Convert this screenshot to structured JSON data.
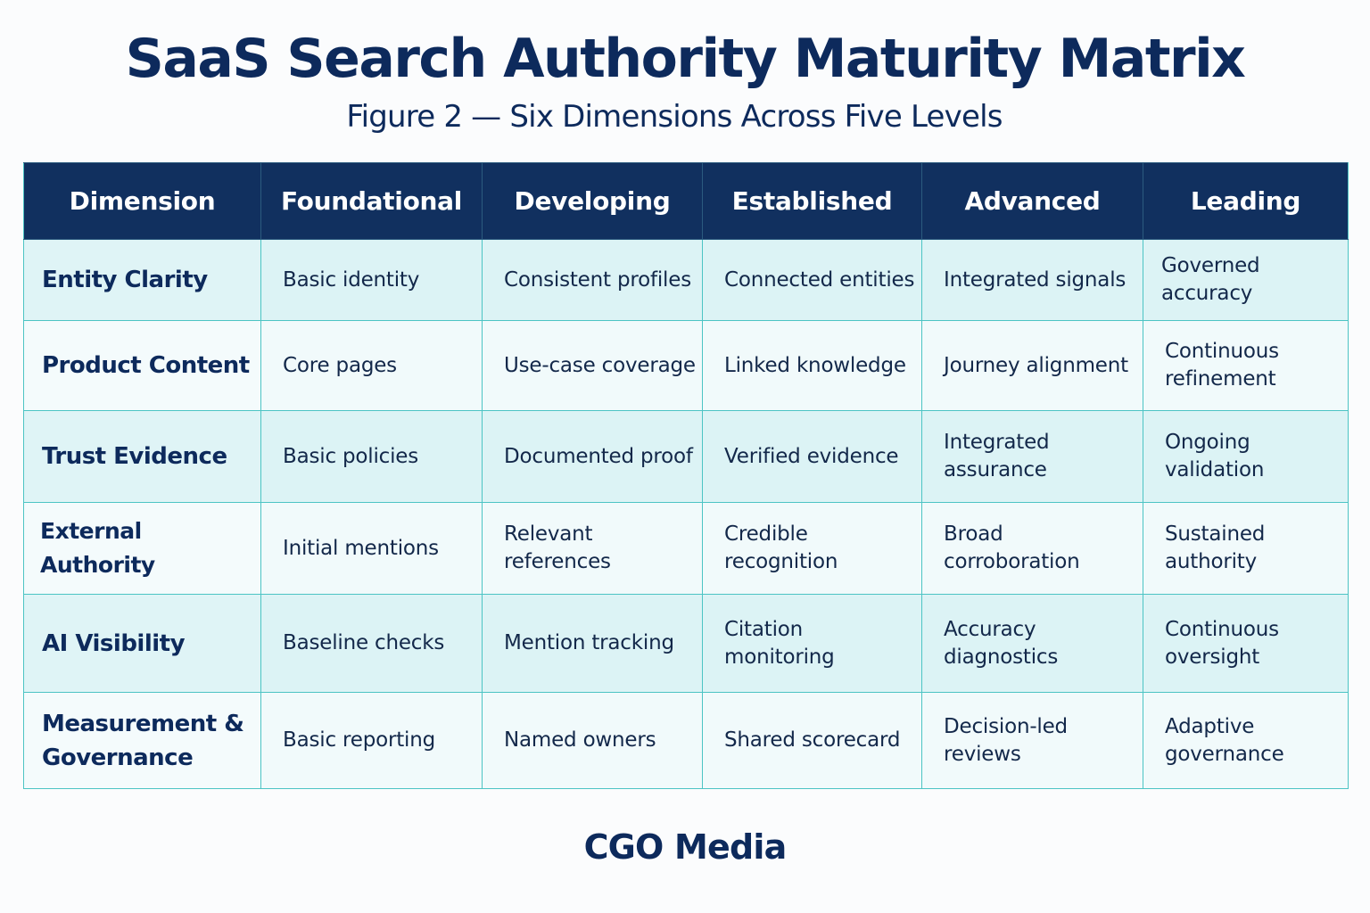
{
  "header": {
    "title": "SaaS Search Authority Maturity Matrix",
    "subtitle": "Figure 2 — Six Dimensions Across Five Levels"
  },
  "matrix": {
    "columns": [
      "Dimension",
      "Foundational",
      "Developing",
      "Established",
      "Advanced",
      "Leading"
    ],
    "rows": [
      {
        "dimension": "Entity Clarity",
        "cells": [
          "Basic identity",
          "Consistent profiles",
          "Connected entities",
          "Integrated signals",
          "Governed accuracy"
        ]
      },
      {
        "dimension": "Product Content",
        "cells": [
          "Core pages",
          "Use-case coverage",
          "Linked knowledge",
          "Journey alignment",
          "Continuous refinement"
        ]
      },
      {
        "dimension": "Trust Evidence",
        "cells": [
          "Basic policies",
          "Documented proof",
          "Verified evidence",
          "Integrated assurance",
          "Ongoing validation"
        ]
      },
      {
        "dimension": "External Authority",
        "cells": [
          "Initial mentions",
          "Relevant references",
          "Credible recognition",
          "Broad corroboration",
          "Sustained authority"
        ]
      },
      {
        "dimension": "AI Visibility",
        "cells": [
          "Baseline checks",
          "Mention tracking",
          "Citation monitoring",
          "Accuracy diagnostics",
          "Continuous oversight"
        ]
      },
      {
        "dimension": "Measurement & Governance",
        "cells": [
          "Basic reporting",
          "Named owners",
          "Shared scorecard",
          "Decision-led reviews",
          "Adaptive governance"
        ]
      }
    ]
  },
  "footer": {
    "brand": "CGO Media"
  },
  "colors": {
    "header_bg": "#11305f",
    "title_text": "#0d2a5c",
    "grid_line": "#4cc4c4",
    "row_tint": "#dcf3f5",
    "row_plain": "#f1fafb"
  }
}
